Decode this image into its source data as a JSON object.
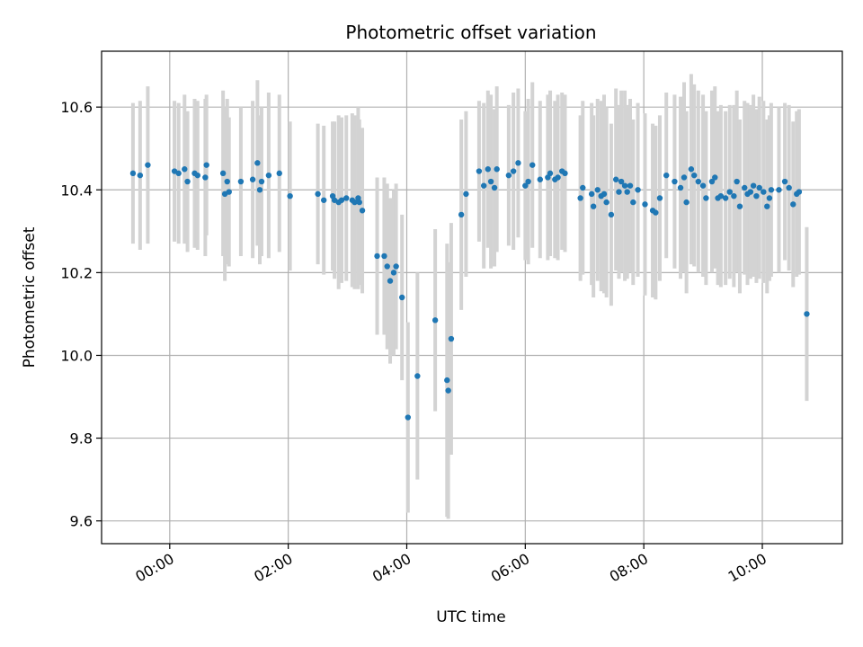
{
  "chart_data": {
    "type": "scatter",
    "title": "Photometric offset variation",
    "xlabel": "UTC time",
    "ylabel": "Photometric offset",
    "x_unit": "hours",
    "xlim": [
      -1.15,
      11.35
    ],
    "ylim": [
      9.545,
      10.735
    ],
    "x_ticks": [
      {
        "value": 0,
        "label": "00:00"
      },
      {
        "value": 2,
        "label": "02:00"
      },
      {
        "value": 4,
        "label": "04:00"
      },
      {
        "value": 6,
        "label": "06:00"
      },
      {
        "value": 8,
        "label": "08:00"
      },
      {
        "value": 10,
        "label": "10:00"
      }
    ],
    "y_ticks": [
      {
        "value": 9.6,
        "label": "9.6"
      },
      {
        "value": 9.8,
        "label": "9.8"
      },
      {
        "value": 10.0,
        "label": "10.0"
      },
      {
        "value": 10.2,
        "label": "10.2"
      },
      {
        "value": 10.4,
        "label": "10.4"
      },
      {
        "value": 10.6,
        "label": "10.6"
      }
    ],
    "grid": true,
    "colors": {
      "points": "#1f77b4",
      "errorbars": "#d3d3d3",
      "grid": "#b0b0b0",
      "axes": "#000000"
    },
    "series": [
      {
        "x": [
          -0.62,
          -0.5,
          -0.37,
          0.08,
          0.15,
          0.25,
          0.3,
          0.42,
          0.47,
          0.6,
          0.62,
          0.9,
          0.93,
          0.97,
          1.0,
          1.2,
          1.4,
          1.48,
          1.52,
          1.55,
          1.67,
          1.85,
          2.03,
          2.5,
          2.6,
          2.75,
          2.78,
          2.85,
          2.9,
          2.98,
          3.08,
          3.12,
          3.18,
          3.2,
          3.25,
          3.5,
          3.62,
          3.67,
          3.72,
          3.78,
          3.82,
          3.92,
          4.02,
          4.18,
          4.48,
          4.68,
          4.7,
          4.75,
          4.92,
          5.0,
          5.22,
          5.3,
          5.37,
          5.42,
          5.48,
          5.52,
          5.72,
          5.8,
          5.88,
          6.0,
          6.05,
          6.12,
          6.25,
          6.38,
          6.42,
          6.5,
          6.55,
          6.62,
          6.67,
          6.93,
          6.97,
          7.12,
          7.15,
          7.22,
          7.28,
          7.33,
          7.37,
          7.45,
          7.53,
          7.58,
          7.62,
          7.68,
          7.72,
          7.77,
          7.82,
          7.9,
          8.02,
          8.15,
          8.2,
          8.27,
          8.38,
          8.52,
          8.62,
          8.68,
          8.72,
          8.8,
          8.85,
          8.92,
          9.0,
          9.05,
          9.15,
          9.2,
          9.25,
          9.3,
          9.38,
          9.45,
          9.52,
          9.57,
          9.62,
          9.7,
          9.75,
          9.8,
          9.85,
          9.9,
          9.95,
          10.02,
          10.08,
          10.12,
          10.15,
          10.28,
          10.38,
          10.45,
          10.52,
          10.58,
          10.62,
          10.75
        ],
        "y": [
          10.44,
          10.435,
          10.46,
          10.445,
          10.44,
          10.45,
          10.42,
          10.44,
          10.435,
          10.43,
          10.46,
          10.44,
          10.39,
          10.42,
          10.395,
          10.42,
          10.425,
          10.465,
          10.4,
          10.42,
          10.435,
          10.44,
          10.385,
          10.39,
          10.375,
          10.385,
          10.375,
          10.37,
          10.375,
          10.38,
          10.375,
          10.37,
          10.38,
          10.37,
          10.35,
          10.24,
          10.24,
          10.215,
          10.18,
          10.2,
          10.215,
          10.14,
          9.85,
          9.95,
          10.085,
          9.94,
          9.915,
          10.04,
          10.34,
          10.39,
          10.445,
          10.41,
          10.45,
          10.42,
          10.405,
          10.45,
          10.435,
          10.445,
          10.465,
          10.41,
          10.42,
          10.46,
          10.425,
          10.43,
          10.44,
          10.425,
          10.43,
          10.445,
          10.44,
          10.38,
          10.405,
          10.39,
          10.36,
          10.4,
          10.385,
          10.39,
          10.37,
          10.34,
          10.425,
          10.395,
          10.42,
          10.41,
          10.395,
          10.41,
          10.37,
          10.4,
          10.365,
          10.35,
          10.345,
          10.38,
          10.435,
          10.42,
          10.405,
          10.43,
          10.37,
          10.45,
          10.435,
          10.42,
          10.41,
          10.38,
          10.42,
          10.43,
          10.38,
          10.385,
          10.38,
          10.395,
          10.385,
          10.42,
          10.36,
          10.405,
          10.39,
          10.395,
          10.41,
          10.385,
          10.405,
          10.395,
          10.36,
          10.38,
          10.4,
          10.4,
          10.42,
          10.405,
          10.365,
          10.39,
          10.395,
          10.1
        ],
        "yerr": [
          0.17,
          0.18,
          0.19,
          0.17,
          0.17,
          0.18,
          0.17,
          0.18,
          0.18,
          0.19,
          0.17,
          0.2,
          0.21,
          0.2,
          0.18,
          0.18,
          0.19,
          0.2,
          0.18,
          0.18,
          0.2,
          0.19,
          0.18,
          0.17,
          0.18,
          0.18,
          0.19,
          0.21,
          0.2,
          0.2,
          0.21,
          0.21,
          0.22,
          0.2,
          0.2,
          0.19,
          0.19,
          0.2,
          0.2,
          0.2,
          0.2,
          0.2,
          0.23,
          0.25,
          0.22,
          0.33,
          0.31,
          0.28,
          0.23,
          0.2,
          0.17,
          0.2,
          0.19,
          0.21,
          0.19,
          0.2,
          0.17,
          0.19,
          0.18,
          0.18,
          0.2,
          0.2,
          0.19,
          0.2,
          0.2,
          0.19,
          0.2,
          0.19,
          0.19,
          0.2,
          0.21,
          0.22,
          0.22,
          0.22,
          0.23,
          0.24,
          0.23,
          0.22,
          0.22,
          0.21,
          0.22,
          0.23,
          0.21,
          0.21,
          0.2,
          0.21,
          0.22,
          0.21,
          0.21,
          0.2,
          0.2,
          0.21,
          0.22,
          0.23,
          0.22,
          0.23,
          0.22,
          0.22,
          0.22,
          0.21,
          0.22,
          0.22,
          0.21,
          0.22,
          0.21,
          0.21,
          0.22,
          0.22,
          0.21,
          0.21,
          0.22,
          0.21,
          0.22,
          0.21,
          0.22,
          0.22,
          0.21,
          0.2,
          0.21,
          0.2,
          0.19,
          0.2,
          0.2,
          0.2,
          0.2,
          0.21
        ]
      }
    ]
  }
}
